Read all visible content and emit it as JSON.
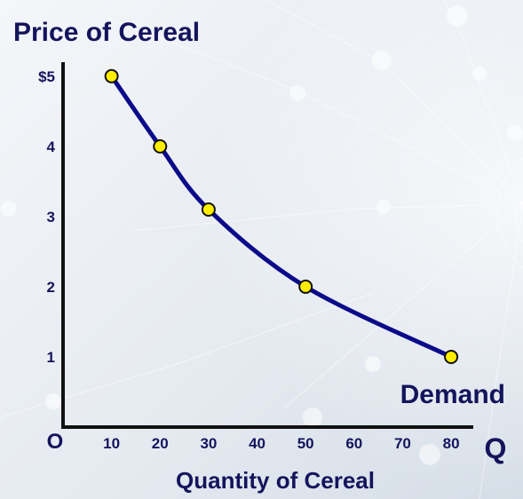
{
  "chart_data": {
    "type": "line",
    "title": "",
    "ylabel": "Price of Cereal",
    "xlabel": "Quantity of Cereal",
    "origin_label": "O",
    "x_axis_letter": "Q",
    "series": [
      {
        "name": "Demand",
        "x": [
          10,
          20,
          30,
          50,
          80
        ],
        "y": [
          5,
          4,
          3.1,
          2,
          1
        ]
      }
    ],
    "x_ticks": [
      10,
      20,
      30,
      40,
      50,
      60,
      70,
      80
    ],
    "x_tick_labels": [
      "10",
      "20",
      "30",
      "40",
      "50",
      "60",
      "70",
      "80"
    ],
    "y_ticks": [
      1,
      2,
      3,
      4,
      5
    ],
    "y_tick_labels": [
      "1",
      "2",
      "3",
      "4",
      "$5"
    ],
    "xlim": [
      0,
      82
    ],
    "ylim": [
      0,
      5.2
    ],
    "grid": false,
    "legend": "none",
    "colors": {
      "curve": "#0b0b8a",
      "point_fill": "#ffee00",
      "point_stroke": "#111111",
      "axis": "#111111",
      "text": "#14145c"
    }
  }
}
